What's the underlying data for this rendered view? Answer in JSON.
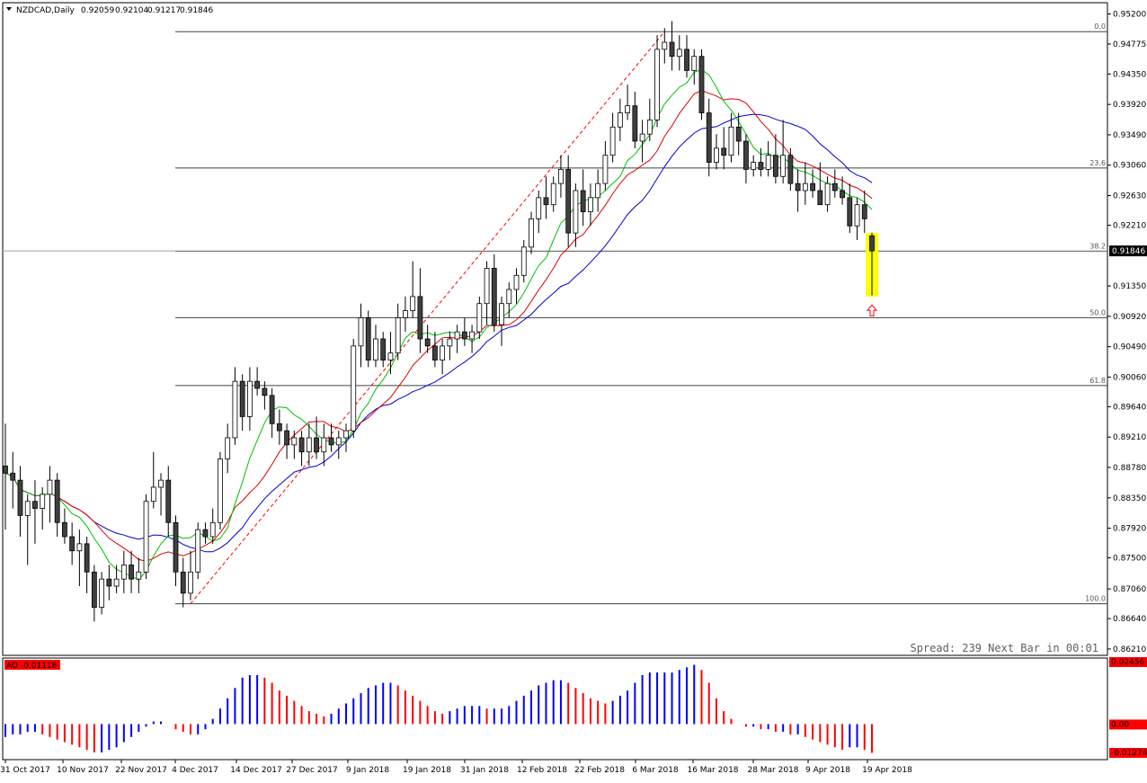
{
  "chart_data": [
    {
      "type": "candlestick",
      "symbol_label": "NZDCAD,Daily",
      "ohlc_header": [
        "0.92059",
        "0.92104",
        "0.91217",
        "0.91846"
      ],
      "price_ticks": [
        "0.95200",
        "0.94775",
        "0.94350",
        "0.93920",
        "0.93490",
        "0.93060",
        "0.92630",
        "0.92210",
        "0.91846",
        "0.91350",
        "0.90920",
        "0.90490",
        "0.90060",
        "0.89640",
        "0.89210",
        "0.88780",
        "0.88350",
        "0.87920",
        "0.87500",
        "0.87060",
        "0.86640",
        "0.86210"
      ],
      "current_price": "0.91846",
      "date_ticks": [
        "31 Oct 2017",
        "10 Nov 2017",
        "22 Nov 2017",
        "4 Dec 2017",
        "14 Dec 2017",
        "27 Dec 2017",
        "9 Jan 2018",
        "19 Jan 2018",
        "31 Jan 2018",
        "12 Feb 2018",
        "22 Feb 2018",
        "6 Mar 2018",
        "16 Mar 2018",
        "28 Mar 2018",
        "9 Apr 2018",
        "19 Apr 2018"
      ],
      "fibonacci_levels": [
        {
          "label": "0.0",
          "price": 0.9495
        },
        {
          "label": "23.6",
          "price": 0.9302
        },
        {
          "label": "38.2",
          "price": 0.9184
        },
        {
          "label": "50.0",
          "price": 0.909
        },
        {
          "label": "61.8",
          "price": 0.8994
        },
        {
          "label": "100.0",
          "price": 0.8685
        }
      ],
      "candles": [
        [
          0.888,
          0.894,
          0.879,
          0.887
        ],
        [
          0.887,
          0.89,
          0.882,
          0.886
        ],
        [
          0.886,
          0.888,
          0.878,
          0.881
        ],
        [
          0.881,
          0.884,
          0.874,
          0.883
        ],
        [
          0.883,
          0.886,
          0.877,
          0.882
        ],
        [
          0.882,
          0.885,
          0.879,
          0.884
        ],
        [
          0.884,
          0.888,
          0.88,
          0.886
        ],
        [
          0.886,
          0.887,
          0.878,
          0.88
        ],
        [
          0.88,
          0.882,
          0.877,
          0.878
        ],
        [
          0.878,
          0.88,
          0.874,
          0.876
        ],
        [
          0.876,
          0.879,
          0.871,
          0.877
        ],
        [
          0.877,
          0.878,
          0.87,
          0.873
        ],
        [
          0.873,
          0.874,
          0.866,
          0.868
        ],
        [
          0.868,
          0.873,
          0.867,
          0.872
        ],
        [
          0.872,
          0.874,
          0.869,
          0.871
        ],
        [
          0.871,
          0.874,
          0.87,
          0.872
        ],
        [
          0.872,
          0.876,
          0.87,
          0.874
        ],
        [
          0.874,
          0.876,
          0.87,
          0.872
        ],
        [
          0.872,
          0.875,
          0.87,
          0.873
        ],
        [
          0.873,
          0.884,
          0.872,
          0.883
        ],
        [
          0.883,
          0.89,
          0.882,
          0.885
        ],
        [
          0.885,
          0.887,
          0.881,
          0.886
        ],
        [
          0.886,
          0.888,
          0.878,
          0.88
        ],
        [
          0.88,
          0.881,
          0.871,
          0.873
        ],
        [
          0.873,
          0.875,
          0.868,
          0.87
        ],
        [
          0.87,
          0.876,
          0.869,
          0.873
        ],
        [
          0.873,
          0.88,
          0.872,
          0.879
        ],
        [
          0.879,
          0.88,
          0.877,
          0.878
        ],
        [
          0.878,
          0.882,
          0.877,
          0.88
        ],
        [
          0.88,
          0.89,
          0.879,
          0.889
        ],
        [
          0.889,
          0.894,
          0.887,
          0.892
        ],
        [
          0.892,
          0.902,
          0.891,
          0.9
        ],
        [
          0.9,
          0.901,
          0.893,
          0.895
        ],
        [
          0.895,
          0.902,
          0.893,
          0.9
        ],
        [
          0.9,
          0.902,
          0.898,
          0.899
        ],
        [
          0.899,
          0.9,
          0.896,
          0.898
        ],
        [
          0.898,
          0.899,
          0.892,
          0.894
        ],
        [
          0.894,
          0.896,
          0.891,
          0.893
        ],
        [
          0.893,
          0.894,
          0.889,
          0.891
        ],
        [
          0.891,
          0.893,
          0.889,
          0.892
        ],
        [
          0.892,
          0.893,
          0.888,
          0.89
        ],
        [
          0.89,
          0.894,
          0.888,
          0.892
        ],
        [
          0.892,
          0.895,
          0.889,
          0.89
        ],
        [
          0.89,
          0.894,
          0.888,
          0.892
        ],
        [
          0.892,
          0.894,
          0.89,
          0.891
        ],
        [
          0.891,
          0.893,
          0.889,
          0.892
        ],
        [
          0.892,
          0.894,
          0.89,
          0.893
        ],
        [
          0.893,
          0.906,
          0.892,
          0.905
        ],
        [
          0.905,
          0.911,
          0.902,
          0.909
        ],
        [
          0.909,
          0.91,
          0.902,
          0.903
        ],
        [
          0.903,
          0.908,
          0.902,
          0.906
        ],
        [
          0.906,
          0.907,
          0.902,
          0.903
        ],
        [
          0.903,
          0.907,
          0.901,
          0.904
        ],
        [
          0.904,
          0.911,
          0.903,
          0.909
        ],
        [
          0.909,
          0.912,
          0.907,
          0.91
        ],
        [
          0.91,
          0.917,
          0.909,
          0.912
        ],
        [
          0.912,
          0.916,
          0.904,
          0.906
        ],
        [
          0.906,
          0.908,
          0.904,
          0.905
        ],
        [
          0.905,
          0.907,
          0.902,
          0.903
        ],
        [
          0.903,
          0.906,
          0.901,
          0.905
        ],
        [
          0.905,
          0.907,
          0.903,
          0.906
        ],
        [
          0.906,
          0.908,
          0.904,
          0.907
        ],
        [
          0.907,
          0.909,
          0.905,
          0.906
        ],
        [
          0.906,
          0.908,
          0.904,
          0.907
        ],
        [
          0.907,
          0.912,
          0.906,
          0.911
        ],
        [
          0.911,
          0.917,
          0.908,
          0.916
        ],
        [
          0.916,
          0.918,
          0.907,
          0.908
        ],
        [
          0.908,
          0.912,
          0.905,
          0.911
        ],
        [
          0.911,
          0.914,
          0.909,
          0.913
        ],
        [
          0.913,
          0.916,
          0.911,
          0.915
        ],
        [
          0.915,
          0.92,
          0.914,
          0.919
        ],
        [
          0.919,
          0.924,
          0.918,
          0.923
        ],
        [
          0.923,
          0.927,
          0.921,
          0.926
        ],
        [
          0.926,
          0.929,
          0.923,
          0.925
        ],
        [
          0.925,
          0.929,
          0.924,
          0.928
        ],
        [
          0.928,
          0.932,
          0.926,
          0.93
        ],
        [
          0.93,
          0.932,
          0.919,
          0.921
        ],
        [
          0.921,
          0.928,
          0.919,
          0.927
        ],
        [
          0.927,
          0.93,
          0.922,
          0.924
        ],
        [
          0.924,
          0.928,
          0.922,
          0.926
        ],
        [
          0.926,
          0.93,
          0.924,
          0.928
        ],
        [
          0.928,
          0.934,
          0.927,
          0.932
        ],
        [
          0.932,
          0.938,
          0.931,
          0.936
        ],
        [
          0.936,
          0.94,
          0.934,
          0.938
        ],
        [
          0.938,
          0.942,
          0.937,
          0.939
        ],
        [
          0.939,
          0.941,
          0.933,
          0.934
        ],
        [
          0.934,
          0.937,
          0.931,
          0.935
        ],
        [
          0.935,
          0.94,
          0.934,
          0.937
        ],
        [
          0.937,
          0.949,
          0.936,
          0.947
        ],
        [
          0.947,
          0.95,
          0.945,
          0.948
        ],
        [
          0.948,
          0.951,
          0.944,
          0.946
        ],
        [
          0.946,
          0.949,
          0.944,
          0.947
        ],
        [
          0.947,
          0.949,
          0.943,
          0.944
        ],
        [
          0.944,
          0.947,
          0.942,
          0.946
        ],
        [
          0.946,
          0.947,
          0.937,
          0.938
        ],
        [
          0.938,
          0.94,
          0.929,
          0.931
        ],
        [
          0.931,
          0.935,
          0.93,
          0.933
        ],
        [
          0.933,
          0.936,
          0.93,
          0.932
        ],
        [
          0.932,
          0.938,
          0.931,
          0.936
        ],
        [
          0.936,
          0.938,
          0.932,
          0.934
        ],
        [
          0.934,
          0.935,
          0.928,
          0.93
        ],
        [
          0.93,
          0.932,
          0.929,
          0.931
        ],
        [
          0.931,
          0.933,
          0.929,
          0.93
        ],
        [
          0.93,
          0.934,
          0.929,
          0.932
        ],
        [
          0.932,
          0.935,
          0.928,
          0.929
        ],
        [
          0.929,
          0.937,
          0.928,
          0.932
        ],
        [
          0.932,
          0.933,
          0.927,
          0.928
        ],
        [
          0.928,
          0.93,
          0.924,
          0.927
        ],
        [
          0.927,
          0.931,
          0.925,
          0.928
        ],
        [
          0.928,
          0.93,
          0.926,
          0.927
        ],
        [
          0.927,
          0.931,
          0.925,
          0.925
        ],
        [
          0.925,
          0.929,
          0.924,
          0.928
        ],
        [
          0.928,
          0.93,
          0.926,
          0.927
        ],
        [
          0.927,
          0.929,
          0.925,
          0.926
        ],
        [
          0.926,
          0.928,
          0.921,
          0.922
        ],
        [
          0.922,
          0.926,
          0.92,
          0.925
        ],
        [
          0.925,
          0.927,
          0.921,
          0.923
        ],
        [
          0.92059,
          0.92104,
          0.91217,
          0.91846
        ]
      ],
      "ma_green_label": "green moving average",
      "ao_label": "AO -0.01118",
      "ao_ticks": [
        "0.02456",
        "0.00",
        "-0.01274"
      ],
      "ao_values": [
        -0.005,
        -0.004,
        -0.004,
        -0.003,
        -0.003,
        -0.004,
        -0.005,
        -0.006,
        -0.007,
        -0.008,
        -0.009,
        -0.01,
        -0.011,
        -0.011,
        -0.01,
        -0.009,
        -0.007,
        -0.005,
        -0.003,
        -0.001,
        0.001,
        0.001,
        0.0,
        -0.002,
        -0.003,
        -0.004,
        -0.004,
        -0.002,
        0.002,
        0.006,
        0.01,
        0.014,
        0.018,
        0.019,
        0.019,
        0.018,
        0.016,
        0.013,
        0.011,
        0.009,
        0.007,
        0.005,
        0.004,
        0.003,
        0.004,
        0.006,
        0.008,
        0.01,
        0.012,
        0.014,
        0.015,
        0.016,
        0.016,
        0.015,
        0.013,
        0.011,
        0.009,
        0.007,
        0.005,
        0.004,
        0.005,
        0.006,
        0.007,
        0.007,
        0.007,
        0.006,
        0.006,
        0.006,
        0.007,
        0.009,
        0.011,
        0.013,
        0.015,
        0.016,
        0.017,
        0.017,
        0.016,
        0.014,
        0.012,
        0.01,
        0.009,
        0.008,
        0.009,
        0.011,
        0.013,
        0.016,
        0.019,
        0.02,
        0.02,
        0.02,
        0.02,
        0.021,
        0.022,
        0.023,
        0.021,
        0.016,
        0.01,
        0.005,
        0.002,
        0.0,
        -0.001,
        -0.001,
        -0.002,
        -0.002,
        -0.003,
        -0.003,
        -0.004,
        -0.004,
        -0.005,
        -0.006,
        -0.007,
        -0.008,
        -0.009,
        -0.01,
        -0.009,
        -0.009,
        -0.01,
        -0.01118
      ]
    }
  ],
  "status": {
    "spread_text": "Spread: 239 Next Bar in 00:01"
  },
  "colors": {
    "bg": "#ffffff",
    "ma_green": "#00c000",
    "ma_red": "#e00000",
    "ma_blue": "#0000d0",
    "ao_up": "#0000ff",
    "ao_down": "#ff0000",
    "highlight": "#ffff00",
    "fib_line": "#404040",
    "channel": "#ff0000",
    "label_red": "#ff0000"
  }
}
